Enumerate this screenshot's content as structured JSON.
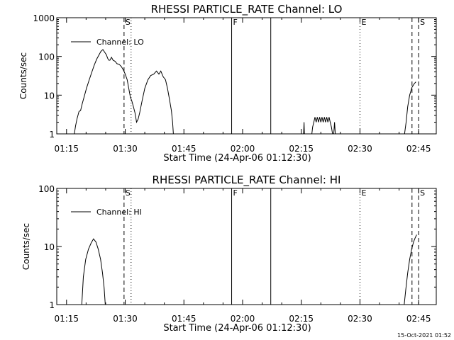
{
  "chart_data": [
    {
      "type": "line",
      "title": "RHESSI PARTICLE_RATE Channel: LO",
      "xlabel": "Start Time (24-Apr-06 01:12:30)",
      "ylabel": "Counts/sec",
      "yscale": "log",
      "xlim": [
        0,
        97
      ],
      "ylim": [
        1,
        1000
      ],
      "xticks": [
        {
          "x": 2.5,
          "label": "01:15"
        },
        {
          "x": 17.5,
          "label": "01:30"
        },
        {
          "x": 32.5,
          "label": "01:45"
        },
        {
          "x": 47.5,
          "label": "02:00"
        },
        {
          "x": 62.5,
          "label": "02:15"
        },
        {
          "x": 77.5,
          "label": "02:30"
        },
        {
          "x": 92.5,
          "label": "02:45"
        }
      ],
      "yticks": [
        {
          "y": 1,
          "label": "1"
        },
        {
          "y": 10,
          "label": "10"
        },
        {
          "y": 100,
          "label": "100"
        },
        {
          "y": 1000,
          "label": "1000"
        }
      ],
      "legend": "Channel: LO",
      "series": [
        {
          "name": "Channel: LO",
          "segments": [
            [
              [
                4.5,
                1
              ],
              [
                4.8,
                1.6
              ],
              [
                5.2,
                2.5
              ],
              [
                5.7,
                3.8
              ],
              [
                6.1,
                4
              ],
              [
                6.5,
                6
              ],
              [
                7,
                9
              ],
              [
                7.6,
                15
              ],
              [
                8.3,
                25
              ],
              [
                9,
                40
              ],
              [
                9.6,
                60
              ],
              [
                10.2,
                85
              ],
              [
                10.8,
                110
              ],
              [
                11.3,
                135
              ],
              [
                11.8,
                150
              ],
              [
                12.2,
                130
              ],
              [
                12.7,
                110
              ],
              [
                13,
                90
              ],
              [
                13.3,
                80
              ],
              [
                13.6,
                80
              ],
              [
                14,
                95
              ],
              [
                14.4,
                80
              ],
              [
                14.9,
                75
              ],
              [
                15.4,
                65
              ],
              [
                16,
                62
              ],
              [
                16.5,
                55
              ],
              [
                17,
                45
              ],
              [
                17.5,
                35
              ],
              [
                18,
                25
              ],
              [
                18.4,
                15
              ],
              [
                18.8,
                9
              ],
              [
                19.2,
                7
              ],
              [
                19.6,
                5
              ],
              [
                20,
                3.5
              ],
              [
                20.4,
                2
              ],
              [
                20.8,
                2.4
              ],
              [
                21.2,
                3.5
              ],
              [
                21.8,
                7
              ],
              [
                22.5,
                15
              ],
              [
                23.3,
                25
              ],
              [
                24,
                32
              ],
              [
                24.8,
                35
              ],
              [
                25.5,
                42
              ],
              [
                26.1,
                35
              ],
              [
                26.6,
                42
              ],
              [
                27.2,
                30
              ],
              [
                27.8,
                25
              ],
              [
                28.3,
                15
              ],
              [
                28.8,
                8
              ],
              [
                29.3,
                4
              ],
              [
                29.6,
                2
              ],
              [
                29.8,
                1
              ]
            ],
            [
              [
                63.1,
                1
              ],
              [
                63.2,
                2
              ],
              [
                63.3,
                1
              ]
            ],
            [
              [
                65.2,
                1
              ],
              [
                65.4,
                1.5
              ],
              [
                65.7,
                2
              ],
              [
                66,
                2.7
              ],
              [
                66.3,
                2
              ],
              [
                66.6,
                2.7
              ],
              [
                66.9,
                2
              ],
              [
                67.2,
                2.7
              ],
              [
                67.5,
                2
              ],
              [
                67.8,
                2.7
              ],
              [
                68.1,
                2
              ],
              [
                68.4,
                2.7
              ],
              [
                68.7,
                2
              ],
              [
                69,
                2.7
              ],
              [
                69.3,
                2
              ],
              [
                69.6,
                2.7
              ],
              [
                69.9,
                2
              ],
              [
                70.2,
                1.5
              ],
              [
                70.5,
                1
              ]
            ],
            [
              [
                70.8,
                1
              ],
              [
                71.0,
                2
              ],
              [
                71.2,
                1
              ]
            ],
            [
              [
                88.9,
                1
              ],
              [
                89.3,
                2
              ],
              [
                89.7,
                5
              ],
              [
                90.2,
                10
              ],
              [
                90.8,
                16
              ],
              [
                91.4,
                20
              ],
              [
                91.8,
                22
              ]
            ]
          ]
        }
      ],
      "markers": [
        {
          "x": 17.2,
          "label": "S",
          "style": "dashed"
        },
        {
          "x": 19.0,
          "label": "",
          "style": "dotted"
        },
        {
          "x": 44.7,
          "label": "F",
          "style": "solid"
        },
        {
          "x": 54.7,
          "label": "",
          "style": "solid"
        },
        {
          "x": 77.5,
          "label": "E",
          "style": "dotted"
        },
        {
          "x": 90.8,
          "label": "",
          "style": "dashed"
        },
        {
          "x": 92.5,
          "label": "S",
          "style": "dashed"
        }
      ]
    },
    {
      "type": "line",
      "title": "RHESSI PARTICLE_RATE Channel: HI",
      "xlabel": "Start Time (24-Apr-06 01:12:30)",
      "ylabel": "Counts/sec",
      "yscale": "log",
      "xlim": [
        0,
        97
      ],
      "ylim": [
        1,
        100
      ],
      "xticks": [
        {
          "x": 2.5,
          "label": "01:15"
        },
        {
          "x": 17.5,
          "label": "01:30"
        },
        {
          "x": 32.5,
          "label": "01:45"
        },
        {
          "x": 47.5,
          "label": "02:00"
        },
        {
          "x": 62.5,
          "label": "02:15"
        },
        {
          "x": 77.5,
          "label": "02:30"
        },
        {
          "x": 92.5,
          "label": "02:45"
        }
      ],
      "yticks": [
        {
          "y": 1,
          "label": "1"
        },
        {
          "y": 10,
          "label": "10"
        },
        {
          "y": 100,
          "label": "100"
        }
      ],
      "legend": "Channel: HI",
      "series": [
        {
          "name": "Channel: HI",
          "segments": [
            [
              [
                6.4,
                1
              ],
              [
                6.8,
                3
              ],
              [
                7.4,
                6
              ],
              [
                8.1,
                9
              ],
              [
                8.8,
                11.5
              ],
              [
                9.4,
                13.5
              ],
              [
                10,
                12
              ],
              [
                10.6,
                9
              ],
              [
                11.2,
                6
              ],
              [
                11.7,
                3.5
              ],
              [
                12.1,
                2
              ],
              [
                12.4,
                1
              ]
            ],
            [
              [
                88.8,
                1
              ],
              [
                89.2,
                1.8
              ],
              [
                89.7,
                3.5
              ],
              [
                90.2,
                6
              ],
              [
                90.7,
                9
              ],
              [
                91.2,
                12
              ],
              [
                91.6,
                14
              ],
              [
                92.0,
                16
              ]
            ]
          ]
        }
      ],
      "markers": [
        {
          "x": 17.2,
          "label": "S",
          "style": "dashed"
        },
        {
          "x": 19.0,
          "label": "",
          "style": "dotted"
        },
        {
          "x": 44.7,
          "label": "F",
          "style": "solid"
        },
        {
          "x": 54.7,
          "label": "",
          "style": "solid"
        },
        {
          "x": 77.5,
          "label": "E",
          "style": "dotted"
        },
        {
          "x": 90.8,
          "label": "",
          "style": "dashed"
        },
        {
          "x": 92.5,
          "label": "S",
          "style": "dashed"
        }
      ]
    }
  ],
  "footer": {
    "timestamp": "15-Oct-2021 01:52"
  }
}
